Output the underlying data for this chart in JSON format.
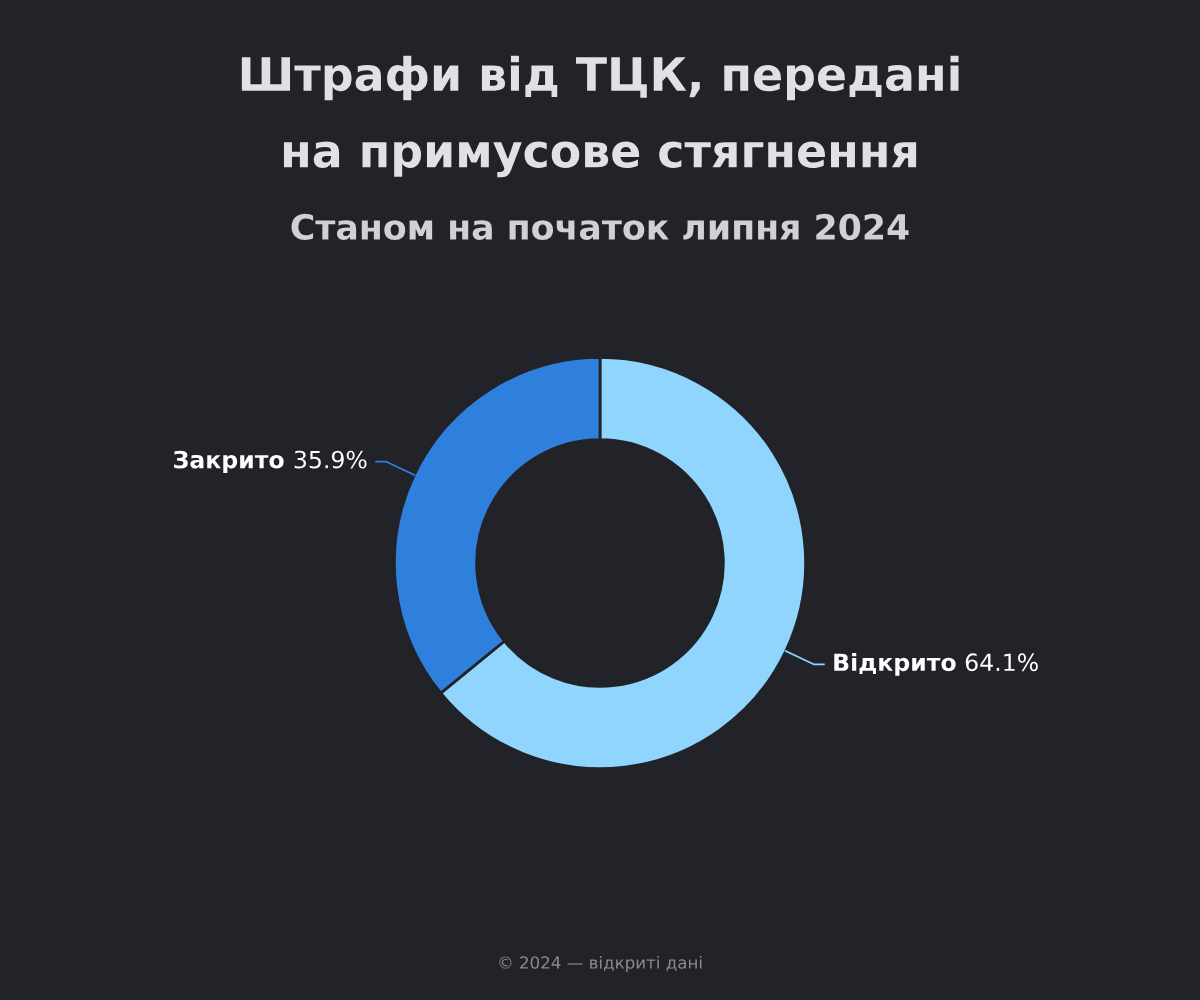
{
  "chart_data": {
    "type": "donut",
    "title": "Штрафи від ТЦК, передані на примусове стягнення",
    "subtitle": "Станом на початок липня 2024",
    "categories": [
      "Відкрито",
      "Закрито"
    ],
    "values": [
      64.1,
      35.9
    ],
    "colors": [
      "#8fd5fd",
      "#2f80dc"
    ],
    "value_labels": [
      "64.1%",
      "35.9%"
    ],
    "legend": false,
    "annotations": [
      "© 2024 — відкриті дані"
    ]
  }
}
